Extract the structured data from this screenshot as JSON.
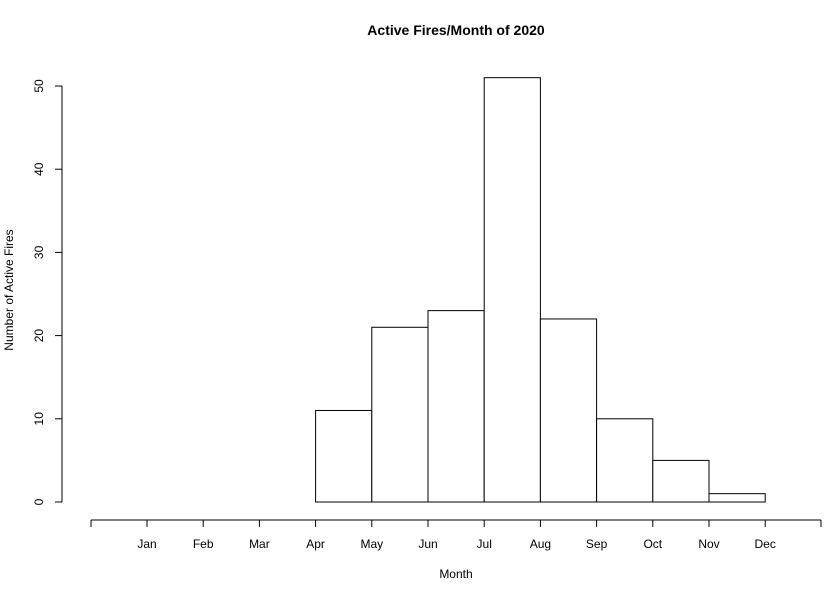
{
  "chart_data": {
    "type": "bar",
    "title": "Active Fires/Month of 2020",
    "xlabel": "Month",
    "ylabel": "Number of Active Fires",
    "bin_edges": [
      "Apr",
      "May",
      "Jun",
      "Jul",
      "Aug",
      "Sep",
      "Oct",
      "Nov",
      "Dec"
    ],
    "values": [
      11,
      21,
      23,
      51,
      22,
      10,
      5,
      1
    ],
    "x_tick_labels": [
      "Jan",
      "Feb",
      "Mar",
      "Apr",
      "May",
      "Jun",
      "Jul",
      "Aug",
      "Sep",
      "Oct",
      "Nov",
      "Dec"
    ],
    "y_ticks": [
      0,
      10,
      20,
      30,
      40,
      50
    ],
    "ylim": [
      0,
      50
    ],
    "grid": false,
    "legend": "none",
    "colors": {
      "bar_fill": "#ffffff",
      "bar_stroke": "#000000",
      "axis": "#000000"
    }
  }
}
